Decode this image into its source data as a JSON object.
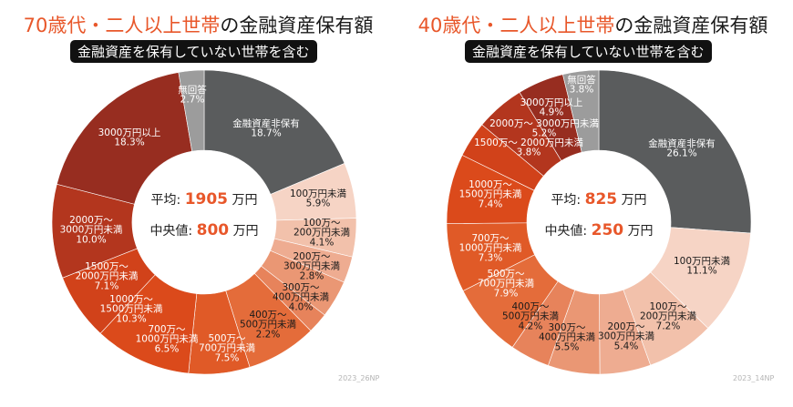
{
  "colors": {
    "accent": "#e8572a",
    "none": "#5a5c5d",
    "no_answer": "#9c9c9c"
  },
  "chart_data": [
    {
      "type": "pie",
      "donut": true,
      "title_highlight": "70歳代・二人以上世帯",
      "title_rest": "の金融資産保有額",
      "badge": "金融資産を保有していない世帯を含む",
      "center": {
        "avg_label": "平均:",
        "avg_value": "1905",
        "avg_unit": "万円",
        "median_label": "中央値:",
        "median_value": "800",
        "median_unit": "万円"
      },
      "footnote": "2023_26NP",
      "slices": [
        {
          "label": [
            "金融資産非保有"
          ],
          "value": 18.7,
          "pct": "18.7%",
          "color": "#5a5c5d",
          "dark": false
        },
        {
          "label": [
            "100万円未満"
          ],
          "value": 5.9,
          "pct": "5.9%",
          "color": "#f6d4c5",
          "dark": true
        },
        {
          "label": [
            "100万～",
            "200万円未満"
          ],
          "value": 4.1,
          "pct": "4.1%",
          "color": "#f2c1ab",
          "dark": true
        },
        {
          "label": [
            "200万～",
            "300万円未満"
          ],
          "value": 2.8,
          "pct": "2.8%",
          "color": "#eeac91",
          "dark": true
        },
        {
          "label": [
            "300万～",
            "400万円未満"
          ],
          "value": 4.0,
          "pct": "4.0%",
          "color": "#ea9774",
          "dark": true
        },
        {
          "label": [
            "400万～",
            "500万円未満"
          ],
          "value": 2.2,
          "pct": "2.2%",
          "color": "#e7835b",
          "dark": true
        },
        {
          "label": [
            "500万～",
            "700万円未満"
          ],
          "value": 7.5,
          "pct": "7.5%",
          "color": "#e46c3a",
          "dark": false
        },
        {
          "label": [
            "700万～",
            "1000万円未満"
          ],
          "value": 6.5,
          "pct": "6.5%",
          "color": "#e05a27",
          "dark": false
        },
        {
          "label": [
            "1000万～",
            "1500万円未満"
          ],
          "value": 10.3,
          "pct": "10.3%",
          "color": "#db4a1b",
          "dark": false
        },
        {
          "label": [
            "1500万～",
            "2000万円未満"
          ],
          "value": 7.1,
          "pct": "7.1%",
          "color": "#d1421a",
          "dark": false
        },
        {
          "label": [
            "2000万～",
            "3000万円未満"
          ],
          "value": 10.0,
          "pct": "10.0%",
          "color": "#b3361e",
          "dark": false
        },
        {
          "label": [
            "3000万円以上"
          ],
          "value": 18.3,
          "pct": "18.3%",
          "color": "#972d20",
          "dark": false
        },
        {
          "label": [
            "無回答"
          ],
          "value": 2.7,
          "pct": "2.7%",
          "color": "#9c9c9c",
          "dark": false
        }
      ]
    },
    {
      "type": "pie",
      "donut": true,
      "title_highlight": "40歳代・二人以上世帯",
      "title_rest": "の金融資産保有額",
      "badge": "金融資産を保有していない世帯を含む",
      "center": {
        "avg_label": "平均:",
        "avg_value": "825",
        "avg_unit": "万円",
        "median_label": "中央値:",
        "median_value": "250",
        "median_unit": "万円"
      },
      "footnote": "2023_14NP",
      "slices": [
        {
          "label": [
            "金融資産非保有"
          ],
          "value": 26.1,
          "pct": "26.1%",
          "color": "#5a5c5d",
          "dark": false
        },
        {
          "label": [
            "100万円未満"
          ],
          "value": 11.1,
          "pct": "11.1%",
          "color": "#f6d4c5",
          "dark": true
        },
        {
          "label": [
            "100万～",
            "200万円未満"
          ],
          "value": 7.2,
          "pct": "7.2%",
          "color": "#f2c1ab",
          "dark": true
        },
        {
          "label": [
            "200万～",
            "300万円未満"
          ],
          "value": 5.4,
          "pct": "5.4%",
          "color": "#eeac91",
          "dark": true
        },
        {
          "label": [
            "300万～",
            "400万円未満"
          ],
          "value": 5.5,
          "pct": "5.5%",
          "color": "#ea9774",
          "dark": true
        },
        {
          "label": [
            "400万～",
            "500万円未満"
          ],
          "value": 4.2,
          "pct": "4.2%",
          "color": "#e7835b",
          "dark": true
        },
        {
          "label": [
            "500万～",
            "700万円未満"
          ],
          "value": 7.9,
          "pct": "7.9%",
          "color": "#e46c3a",
          "dark": false
        },
        {
          "label": [
            "700万～",
            "1000万円未満"
          ],
          "value": 7.3,
          "pct": "7.3%",
          "color": "#e05a27",
          "dark": false
        },
        {
          "label": [
            "1000万～",
            "1500万円未満"
          ],
          "value": 7.4,
          "pct": "7.4%",
          "color": "#db4a1b",
          "dark": false
        },
        {
          "label": [
            "1500万～ 2000万円未満"
          ],
          "value": 3.8,
          "pct": "3.8%",
          "color": "#d1421a",
          "dark": false
        },
        {
          "label": [
            "2000万～ 3000万円未満"
          ],
          "value": 5.2,
          "pct": "5.2%",
          "color": "#b3361e",
          "dark": false
        },
        {
          "label": [
            "3000万円以上"
          ],
          "value": 4.9,
          "pct": "4.9%",
          "color": "#972d20",
          "dark": false
        },
        {
          "label": [
            "無回答"
          ],
          "value": 3.8,
          "pct": "3.8%",
          "color": "#9c9c9c",
          "dark": false
        }
      ]
    }
  ]
}
